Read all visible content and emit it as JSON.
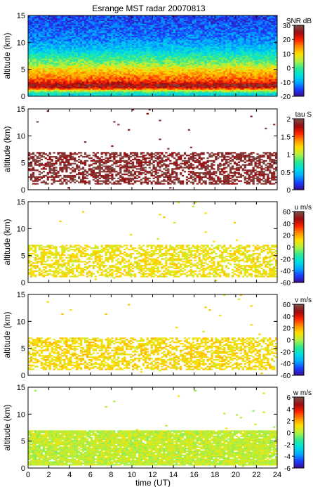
{
  "title": "Esrange MST radar 20070813",
  "xlabel": "time (UT)",
  "chart_data": [
    {
      "type": "heatmap",
      "ylabel": "altitude (km)",
      "colorbar_label": "SNR dB",
      "clim": [
        -20,
        30
      ],
      "cticks": [
        30,
        20,
        10,
        0,
        -10,
        -20
      ],
      "ylim": [
        0,
        15
      ],
      "yticks": [
        0,
        5,
        10,
        15
      ],
      "background": "filled",
      "band_profile": [
        {
          "alt": 0.5,
          "value": -5
        },
        {
          "alt": 1.0,
          "value": 5
        },
        {
          "alt": 1.5,
          "value": 20
        },
        {
          "alt": 2.0,
          "value": 27
        },
        {
          "alt": 2.5,
          "value": 22
        },
        {
          "alt": 3.0,
          "value": 18
        },
        {
          "alt": 4.0,
          "value": 14
        },
        {
          "alt": 5.0,
          "value": 10
        },
        {
          "alt": 6.0,
          "value": 4
        },
        {
          "alt": 7.5,
          "value": -2
        },
        {
          "alt": 9.0,
          "value": -8
        },
        {
          "alt": 11.0,
          "value": -12
        },
        {
          "alt": 13.0,
          "value": -14
        },
        {
          "alt": 15.0,
          "value": -15
        }
      ]
    },
    {
      "type": "heatmap",
      "ylabel": "altitude (km)",
      "colorbar_label": "tau S",
      "clim": [
        0,
        2
      ],
      "cticks": [
        2,
        1.5,
        1,
        0.5,
        0
      ],
      "ylim": [
        0,
        15
      ],
      "yticks": [
        0,
        5,
        10,
        15
      ],
      "background": "sparse",
      "echo_layer_km": [
        1,
        7
      ],
      "typical_value": 1.9
    },
    {
      "type": "heatmap",
      "ylabel": "altitude (km)",
      "colorbar_label": "u m/s",
      "clim": [
        -60,
        60
      ],
      "cticks": [
        60,
        40,
        20,
        0,
        -20,
        -40,
        -60
      ],
      "ylim": [
        0,
        15
      ],
      "yticks": [
        0,
        5,
        10,
        15
      ],
      "background": "sparse",
      "echo_layer_km": [
        1,
        7
      ],
      "typical_value": 10
    },
    {
      "type": "heatmap",
      "ylabel": "altitude (km)",
      "colorbar_label": "v m/s",
      "clim": [
        -60,
        60
      ],
      "cticks": [
        60,
        40,
        20,
        0,
        -20,
        -40,
        -60
      ],
      "ylim": [
        0,
        15
      ],
      "yticks": [
        0,
        5,
        10,
        15
      ],
      "background": "sparse",
      "echo_layer_km": [
        1,
        7
      ],
      "typical_value": 12
    },
    {
      "type": "heatmap",
      "ylabel": "altitude (km)",
      "colorbar_label": "w m/s",
      "clim": [
        -6,
        6
      ],
      "cticks": [
        6,
        4,
        2,
        0,
        -2,
        -4,
        -6
      ],
      "ylim": [
        0,
        15
      ],
      "yticks": [
        0,
        5,
        10,
        15
      ],
      "background": "dense",
      "echo_layer_km": [
        0.5,
        7
      ],
      "typical_value": 0.3
    }
  ],
  "xlim": [
    0,
    24
  ],
  "xticks": [
    0,
    2,
    4,
    6,
    8,
    10,
    12,
    14,
    16,
    18,
    20,
    22,
    24
  ],
  "colors": {
    "scale": [
      "#3b0a8c",
      "#1a3cff",
      "#00aaff",
      "#00e0e0",
      "#30e890",
      "#b0f040",
      "#ffe000",
      "#ff9000",
      "#ff2000",
      "#9a0a10",
      "#7a5048"
    ],
    "frame": "#000000"
  }
}
